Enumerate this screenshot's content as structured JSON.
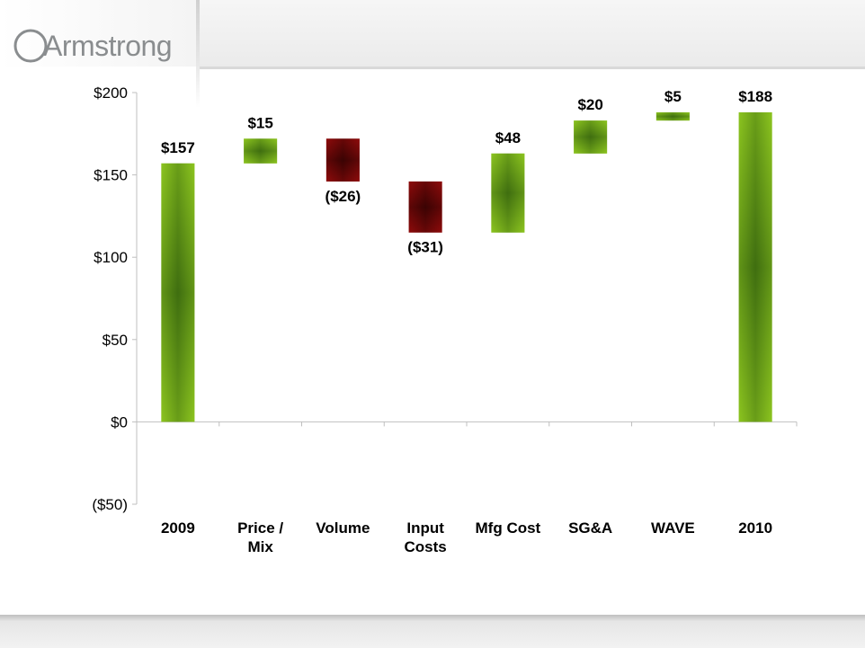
{
  "brand": {
    "name": "Armstrong",
    "color": "#8a8d8f"
  },
  "chart_data": {
    "type": "bar",
    "subtype": "waterfall",
    "categories": [
      [
        "2009"
      ],
      [
        "Price /",
        "Mix"
      ],
      [
        "Volume"
      ],
      [
        "Input",
        "Costs"
      ],
      [
        "Mfg Cost"
      ],
      [
        "SG&A"
      ],
      [
        "WAVE"
      ],
      [
        "2010"
      ]
    ],
    "steps": [
      {
        "kind": "total",
        "start": 0,
        "end": 157,
        "label": "$157"
      },
      {
        "kind": "increase",
        "start": 157,
        "end": 172,
        "label": "$15"
      },
      {
        "kind": "decrease",
        "start": 172,
        "end": 146,
        "label": "($26)"
      },
      {
        "kind": "decrease",
        "start": 146,
        "end": 115,
        "label": "($31)"
      },
      {
        "kind": "increase",
        "start": 115,
        "end": 163,
        "label": "$48"
      },
      {
        "kind": "increase",
        "start": 163,
        "end": 183,
        "label": "$20"
      },
      {
        "kind": "increase",
        "start": 183,
        "end": 188,
        "label": "$5"
      },
      {
        "kind": "total",
        "start": 0,
        "end": 188,
        "label": "$188"
      }
    ],
    "ylim": [
      -50,
      200
    ],
    "yticks": [
      200,
      150,
      100,
      50,
      0,
      -50
    ],
    "ytick_labels": [
      "$200",
      "$150",
      "$100",
      "$50",
      "$0",
      "($50)"
    ],
    "grid": false,
    "colors": {
      "total": "#8cc41f",
      "increase": "#8cc41f",
      "decrease": "#8b0a0a"
    }
  }
}
